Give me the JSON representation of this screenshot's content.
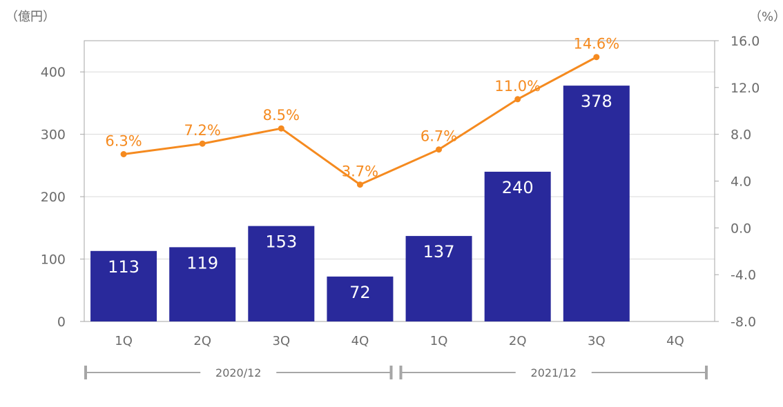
{
  "chart_data": {
    "type": "bar+line",
    "left_unit": "（億円）",
    "right_unit": "（%）",
    "left_ticks": [
      "0",
      "100",
      "200",
      "300",
      "400"
    ],
    "right_ticks": [
      "-8.0",
      "-4.0",
      "0.0",
      "4.0",
      "8.0",
      "12.0",
      "16.0"
    ],
    "ylim_left": [
      0,
      450
    ],
    "ylim_right": [
      -8,
      16
    ],
    "categories": [
      "1Q",
      "2Q",
      "3Q",
      "4Q",
      "1Q",
      "2Q",
      "3Q",
      "4Q"
    ],
    "groups": [
      {
        "label": "2020/12",
        "span": [
          0,
          3
        ]
      },
      {
        "label": "2021/12",
        "span": [
          4,
          7
        ]
      }
    ],
    "bars": {
      "values": [
        113,
        119,
        153,
        72,
        137,
        240,
        378,
        null
      ],
      "labels": [
        "113",
        "119",
        "153",
        "72",
        "137",
        "240",
        "378",
        ""
      ]
    },
    "line": {
      "values": [
        6.3,
        7.2,
        8.5,
        3.7,
        6.7,
        11.0,
        14.6,
        null
      ],
      "labels": [
        "6.3%",
        "7.2%",
        "8.5%",
        "3.7%",
        "6.7%",
        "11.0%",
        "14.6%",
        ""
      ]
    },
    "grid": true,
    "colors": {
      "bar": "#29299b",
      "line": "#f58a1f",
      "grid": "#d9d9d9",
      "axis": "#a6a6a6",
      "bracket": "#a6a6a6"
    }
  }
}
